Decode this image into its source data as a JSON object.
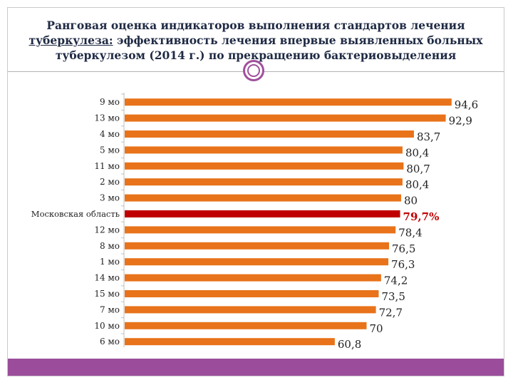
{
  "slide": {
    "title_line1": "Ранговая оценка индикаторов выполнения стандартов лечения",
    "title_line2_underlined": "туберкулеза:",
    "title_line2_rest": " эффективность лечения впервые выявленных больных",
    "title_line3": "туберкулезом (2014 г.) по прекращению бактериовыделения"
  },
  "colors": {
    "bar": "#e8731a",
    "highlight_bar": "#c00000",
    "highlight_label": "#c00000",
    "accent": "#9b4d9b"
  },
  "chart_data": {
    "type": "bar",
    "orientation": "horizontal",
    "categories": [
      "9 мо",
      "13 мо",
      "4 мо",
      "5 мо",
      "11 мо",
      "2 мо",
      "3 мо",
      "Московская область",
      "12 мо",
      "8 мо",
      "1 мо",
      "14 мо",
      "15 мо",
      "7 мо",
      "10 мо",
      "6 мо"
    ],
    "values": [
      94.6,
      92.9,
      83.7,
      80.4,
      80.7,
      80.4,
      80,
      79.7,
      78.4,
      76.5,
      76.3,
      74.2,
      73.5,
      72.7,
      70,
      60.8
    ],
    "value_labels": [
      "94,6",
      "92,9",
      "83,7",
      "80,4",
      "80,7",
      "80,4",
      "80",
      "79,7%",
      "78,4",
      "76,5",
      "76,3",
      "74,2",
      "73,5",
      "72,7",
      "70",
      "60,8"
    ],
    "highlight_index": 7,
    "xlim": [
      0,
      100
    ],
    "grid": false,
    "legend": "none"
  }
}
